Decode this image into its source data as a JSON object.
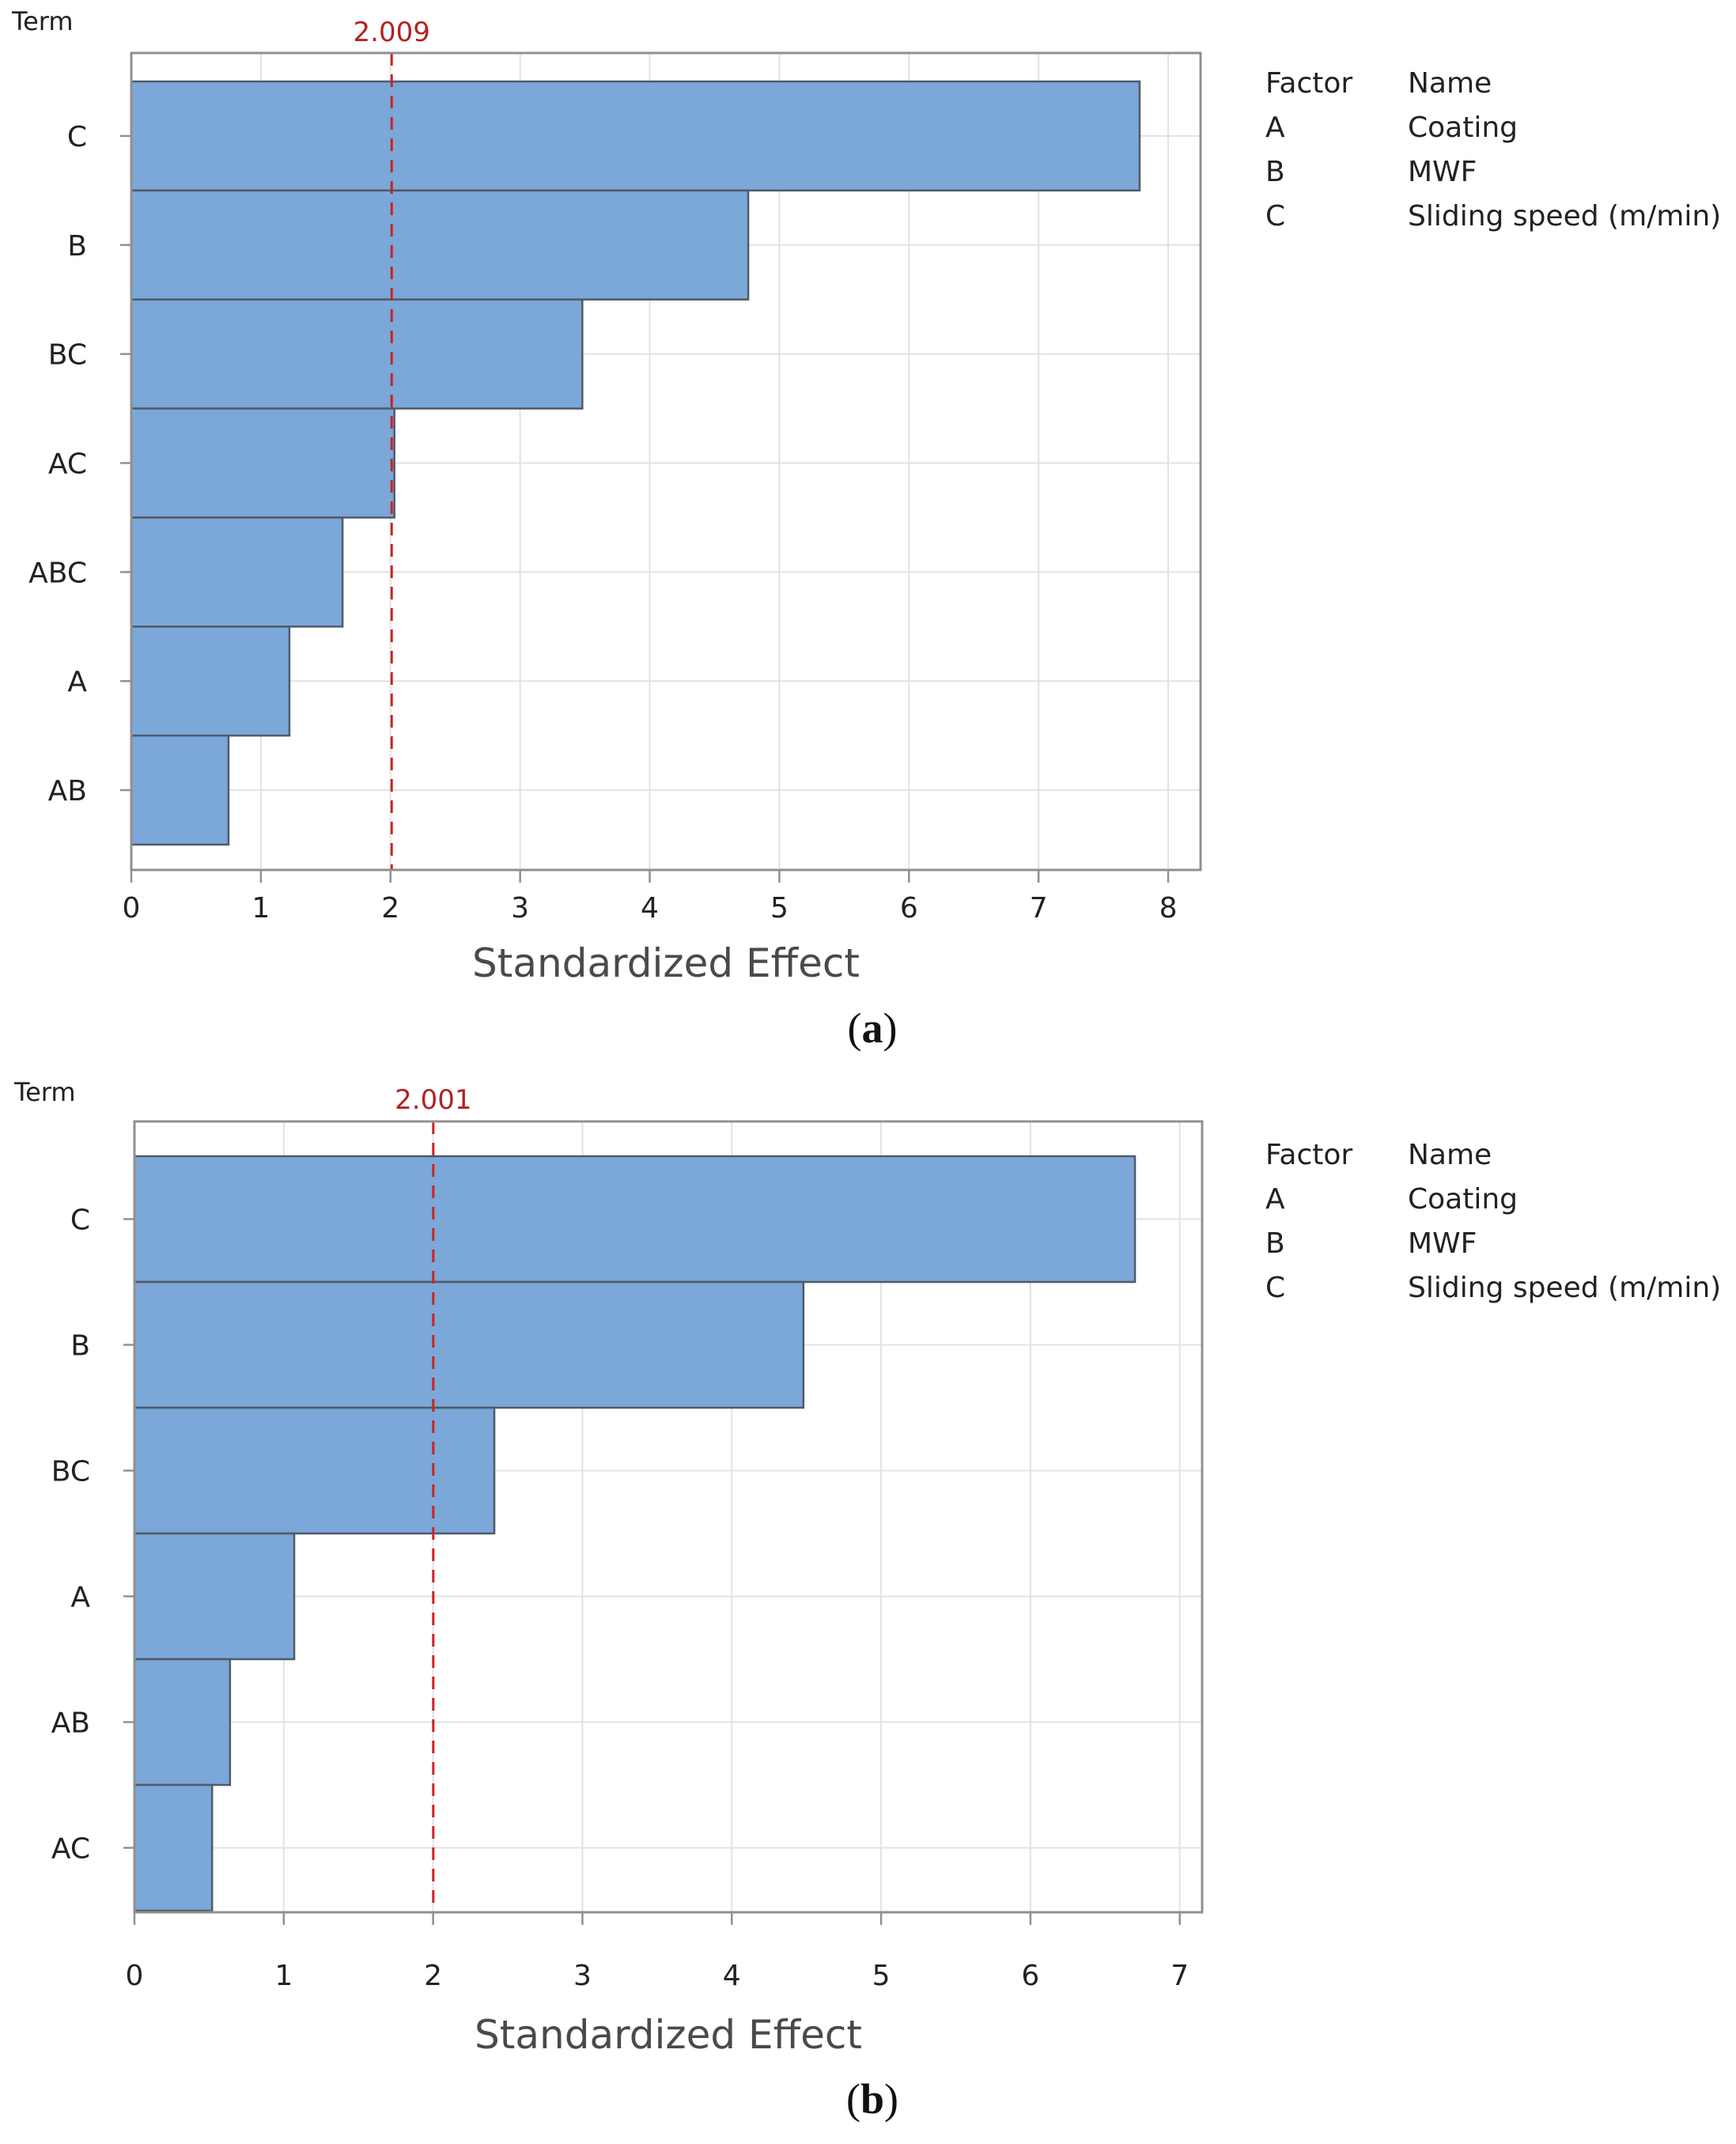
{
  "chart_data": [
    {
      "type": "bar",
      "orientation": "horizontal",
      "panel_caption": "a",
      "y_title": "Term",
      "xlabel": "Standardized Effect",
      "categories": [
        "C",
        "B",
        "BC",
        "AC",
        "ABC",
        "A",
        "AB"
      ],
      "values": [
        7.78,
        4.76,
        3.48,
        2.03,
        1.63,
        1.22,
        0.75
      ],
      "xlim": [
        0,
        8.25
      ],
      "xticks": [
        0,
        1,
        2,
        3,
        4,
        5,
        6,
        7,
        8
      ],
      "reference_line": {
        "value": 2.009,
        "label": "2.009"
      },
      "legend": {
        "header": [
          "Factor",
          "Name"
        ],
        "rows": [
          [
            "A",
            "Coating"
          ],
          [
            "B",
            "MWF"
          ],
          [
            "C",
            "Sliding speed (m/min)"
          ]
        ]
      }
    },
    {
      "type": "bar",
      "orientation": "horizontal",
      "panel_caption": "b",
      "y_title": "Term",
      "xlabel": "Standardized Effect",
      "categories": [
        "C",
        "B",
        "BC",
        "A",
        "AB",
        "AC"
      ],
      "values": [
        6.7,
        4.48,
        2.41,
        1.07,
        0.64,
        0.52
      ],
      "xlim": [
        0,
        7.15
      ],
      "xticks": [
        0,
        1,
        2,
        3,
        4,
        5,
        6,
        7
      ],
      "reference_line": {
        "value": 2.001,
        "label": "2.001"
      },
      "legend": {
        "header": [
          "Factor",
          "Name"
        ],
        "rows": [
          [
            "A",
            "Coating"
          ],
          [
            "B",
            "MWF"
          ],
          [
            "C",
            "Sliding speed (m/min)"
          ]
        ]
      }
    }
  ],
  "colors": {
    "bar_fill": "#7ba7d9",
    "bar_stroke": "#505a66",
    "reference": "#cc2222",
    "reference_label": "#b22222",
    "grid": "#e2e2e2",
    "frame": "#909090",
    "text": "#222222",
    "axis_title": "#4a4a4a"
  }
}
